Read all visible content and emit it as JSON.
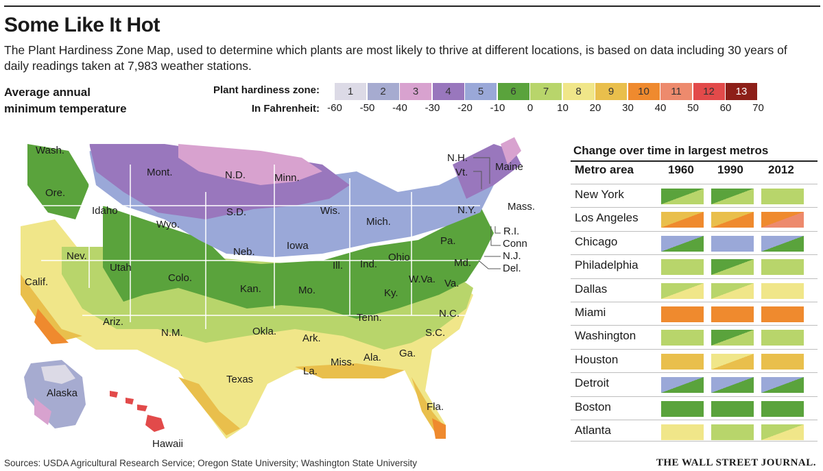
{
  "title": "Some Like It Hot",
  "subtitle": "The Plant Hardiness Zone Map, used to determine which plants are most likely to thrive at different locations, is based on data including 30 years of daily readings taken at 7,983 weather stations.",
  "map_heading_line1": "Average annual",
  "map_heading_line2": "minimum temperature",
  "legend": {
    "zone_label": "Plant hardiness zone:",
    "temp_label": "In Fahrenheit:",
    "zones": [
      {
        "label": "1",
        "color": "#dcdae6"
      },
      {
        "label": "2",
        "color": "#a6abd0"
      },
      {
        "label": "3",
        "color": "#d8a2cf"
      },
      {
        "label": "4",
        "color": "#9977bd"
      },
      {
        "label": "5",
        "color": "#9aa8d8"
      },
      {
        "label": "6",
        "color": "#5aa33c"
      },
      {
        "label": "7",
        "color": "#b8d56b"
      },
      {
        "label": "8",
        "color": "#f0e689"
      },
      {
        "label": "9",
        "color": "#e9bf4c"
      },
      {
        "label": "10",
        "color": "#ef8a2e"
      },
      {
        "label": "11",
        "color": "#ed8a6d"
      },
      {
        "label": "12",
        "color": "#e24a4a"
      },
      {
        "label": "13",
        "color": "#8d1f18"
      }
    ],
    "temps": [
      "-60",
      "-50",
      "-40",
      "-30",
      "-20",
      "-10",
      "0",
      "10",
      "20",
      "30",
      "40",
      "50",
      "60",
      "70"
    ]
  },
  "map_labels": [
    {
      "text": "Wash."
    },
    {
      "text": "Ore."
    },
    {
      "text": "Idaho"
    },
    {
      "text": "Mont."
    },
    {
      "text": "N.D."
    },
    {
      "text": "Minn."
    },
    {
      "text": "S.D."
    },
    {
      "text": "Wyo."
    },
    {
      "text": "Wis."
    },
    {
      "text": "Mich."
    },
    {
      "text": "Nev."
    },
    {
      "text": "Utah"
    },
    {
      "text": "Calif."
    },
    {
      "text": "Colo."
    },
    {
      "text": "Neb."
    },
    {
      "text": "Iowa"
    },
    {
      "text": "Ill."
    },
    {
      "text": "Ind."
    },
    {
      "text": "Ohio"
    },
    {
      "text": "Pa."
    },
    {
      "text": "N.Y."
    },
    {
      "text": "Kan."
    },
    {
      "text": "Mo."
    },
    {
      "text": "Ky."
    },
    {
      "text": "W.Va."
    },
    {
      "text": "Va."
    },
    {
      "text": "Md."
    },
    {
      "text": "Ariz."
    },
    {
      "text": "N.M."
    },
    {
      "text": "Okla."
    },
    {
      "text": "Ark."
    },
    {
      "text": "Tenn."
    },
    {
      "text": "N.C."
    },
    {
      "text": "S.C."
    },
    {
      "text": "Texas"
    },
    {
      "text": "La."
    },
    {
      "text": "Miss."
    },
    {
      "text": "Ala."
    },
    {
      "text": "Ga."
    },
    {
      "text": "Fla."
    },
    {
      "text": "Alaska"
    },
    {
      "text": "Hawaii"
    },
    {
      "text": "Maine"
    },
    {
      "text": "N.H."
    },
    {
      "text": "Vt."
    },
    {
      "text": "Mass."
    },
    {
      "text": "R.I."
    },
    {
      "text": "Conn"
    },
    {
      "text": "N.J."
    },
    {
      "text": "Del."
    }
  ],
  "table": {
    "title": "Change over time in largest metros",
    "headers": [
      "Metro area",
      "1960",
      "1990",
      "2012"
    ],
    "rows": [
      {
        "metro": "New York",
        "cells": [
          [
            "6",
            "7"
          ],
          [
            "6",
            "7"
          ],
          [
            "7",
            "7"
          ]
        ]
      },
      {
        "metro": "Los Angeles",
        "cells": [
          [
            "9",
            "10"
          ],
          [
            "9",
            "10"
          ],
          [
            "10",
            "11"
          ]
        ]
      },
      {
        "metro": "Chicago",
        "cells": [
          [
            "5",
            "6"
          ],
          [
            "5",
            "5"
          ],
          [
            "5",
            "6"
          ]
        ]
      },
      {
        "metro": "Philadelphia",
        "cells": [
          [
            "7",
            "7"
          ],
          [
            "6",
            "7"
          ],
          [
            "7",
            "7"
          ]
        ]
      },
      {
        "metro": "Dallas",
        "cells": [
          [
            "7",
            "8"
          ],
          [
            "7",
            "8"
          ],
          [
            "8",
            "8"
          ]
        ]
      },
      {
        "metro": "Miami",
        "cells": [
          [
            "10",
            "10"
          ],
          [
            "10",
            "10"
          ],
          [
            "10",
            "10"
          ]
        ]
      },
      {
        "metro": "Washington",
        "cells": [
          [
            "7",
            "7"
          ],
          [
            "6",
            "7"
          ],
          [
            "7",
            "7"
          ]
        ]
      },
      {
        "metro": "Houston",
        "cells": [
          [
            "9",
            "9"
          ],
          [
            "8",
            "9"
          ],
          [
            "9",
            "9"
          ]
        ]
      },
      {
        "metro": "Detroit",
        "cells": [
          [
            "5",
            "6"
          ],
          [
            "5",
            "6"
          ],
          [
            "5",
            "6"
          ]
        ]
      },
      {
        "metro": "Boston",
        "cells": [
          [
            "6",
            "6"
          ],
          [
            "6",
            "6"
          ],
          [
            "6",
            "6"
          ]
        ]
      },
      {
        "metro": "Atlanta",
        "cells": [
          [
            "8",
            "8"
          ],
          [
            "7",
            "7"
          ],
          [
            "7",
            "8"
          ]
        ]
      }
    ]
  },
  "sources": "Sources: USDA Agricultural Research Service; Oregon State University; Washington State University",
  "publisher": "THE WALL STREET JOURNAL."
}
